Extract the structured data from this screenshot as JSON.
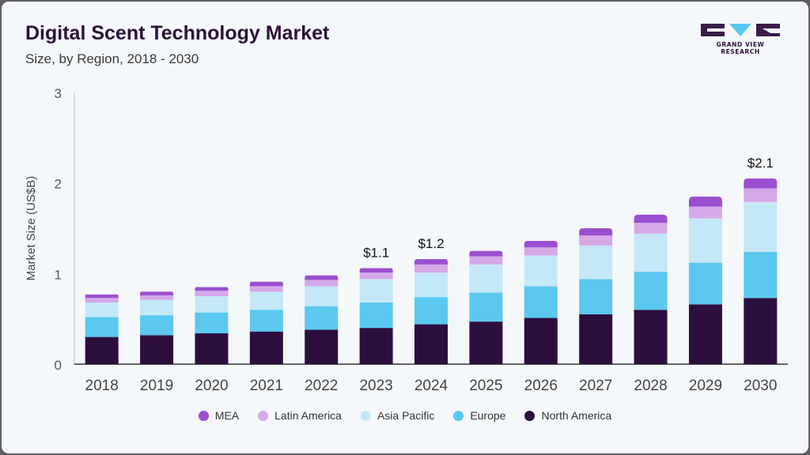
{
  "header": {
    "title": "Digital Scent Technology Market",
    "subtitle": "Size, by Region, 2018 - 2030"
  },
  "logo": {
    "text": "GRAND VIEW RESEARCH"
  },
  "colors": {
    "MEA": "#9b4fd0",
    "Latin America": "#d5a8e8",
    "Asia Pacific": "#c5e8f7",
    "Europe": "#5bc8f0",
    "North America": "#2d0f3e"
  },
  "chart_data": {
    "type": "bar",
    "stacked": true,
    "title": "Digital Scent Technology Market",
    "ylabel": "Market Size (US$B)",
    "ylim": [
      0,
      3
    ],
    "yticks": [
      0,
      1,
      2,
      3
    ],
    "categories": [
      "2018",
      "2019",
      "2020",
      "2021",
      "2022",
      "2023",
      "2024",
      "2025",
      "2026",
      "2027",
      "2028",
      "2029",
      "2030"
    ],
    "series": [
      {
        "name": "North America",
        "values": [
          0.3,
          0.32,
          0.34,
          0.36,
          0.38,
          0.4,
          0.44,
          0.47,
          0.51,
          0.55,
          0.6,
          0.66,
          0.73
        ]
      },
      {
        "name": "Europe",
        "values": [
          0.22,
          0.22,
          0.23,
          0.24,
          0.26,
          0.28,
          0.3,
          0.32,
          0.35,
          0.39,
          0.42,
          0.46,
          0.51
        ]
      },
      {
        "name": "Asia Pacific",
        "values": [
          0.16,
          0.17,
          0.18,
          0.2,
          0.22,
          0.26,
          0.27,
          0.31,
          0.34,
          0.37,
          0.42,
          0.49,
          0.55
        ]
      },
      {
        "name": "Latin America",
        "values": [
          0.05,
          0.05,
          0.06,
          0.06,
          0.07,
          0.07,
          0.09,
          0.09,
          0.09,
          0.11,
          0.12,
          0.13,
          0.15
        ]
      },
      {
        "name": "MEA",
        "values": [
          0.04,
          0.04,
          0.04,
          0.05,
          0.05,
          0.05,
          0.06,
          0.06,
          0.07,
          0.08,
          0.09,
          0.11,
          0.11
        ]
      }
    ],
    "annotations": [
      {
        "category": "2023",
        "label": "$1.1"
      },
      {
        "category": "2024",
        "label": "$1.2"
      },
      {
        "category": "2030",
        "label": "$2.1"
      }
    ],
    "legend": [
      "MEA",
      "Latin America",
      "Asia Pacific",
      "Europe",
      "North America"
    ],
    "legend_position": "bottom",
    "grid": false
  }
}
